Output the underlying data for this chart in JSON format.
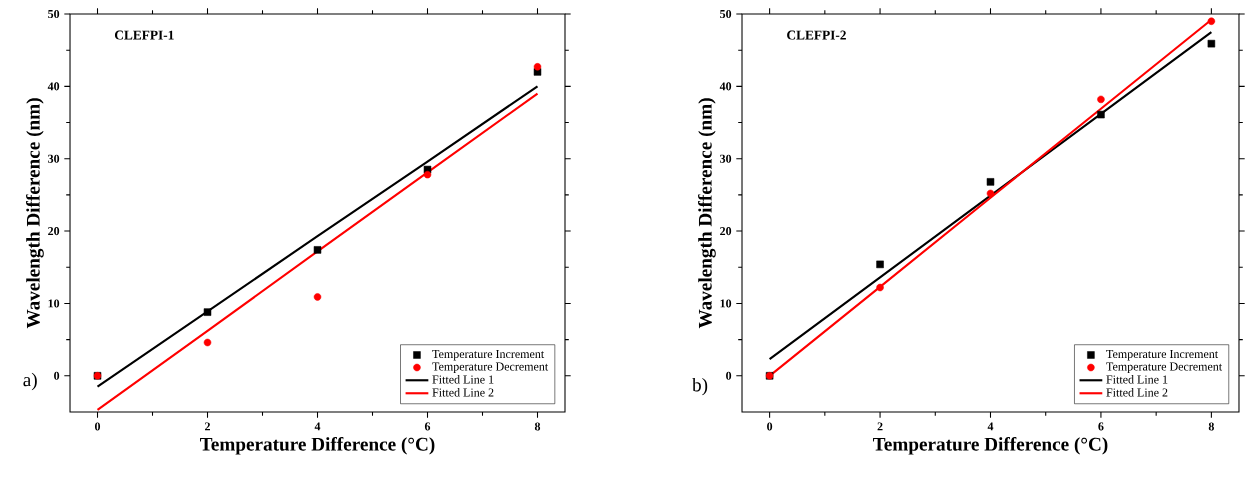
{
  "chart_data": [
    {
      "type": "scatter",
      "title": "CLEFPI-1",
      "xlabel": "Temperature Difference (°C)",
      "ylabel": "Wavelength Difference (nm)",
      "annotations": [
        "a)"
      ],
      "x": [
        0,
        2,
        4,
        6,
        8
      ],
      "xlim": [
        -0.5,
        8.5
      ],
      "ylim": [
        -5,
        50
      ],
      "xticks": [
        0,
        2,
        4,
        6,
        8
      ],
      "yticks": [
        0,
        10,
        20,
        30,
        40,
        50
      ],
      "grid": false,
      "legend": "bottom right",
      "series": [
        {
          "name": "Temperature Increment",
          "type": "scatter",
          "marker": "square",
          "color": "#000000",
          "values": [
            0,
            8.8,
            17.4,
            28.5,
            42
          ]
        },
        {
          "name": "Temperature Decrement",
          "type": "scatter",
          "marker": "circle",
          "color": "#ff0000",
          "values": [
            0,
            4.6,
            10.9,
            27.8,
            42.7
          ]
        },
        {
          "name": "Fitted Line 1",
          "type": "line",
          "marker": "none",
          "color": "#000000",
          "values": [
            -1.5,
            8.9,
            19.3,
            29.6,
            40
          ]
        },
        {
          "name": "Fitted Line 2",
          "type": "line",
          "marker": "none",
          "color": "#ff0000",
          "values": [
            -4.7,
            6.2,
            17.2,
            28.1,
            39
          ]
        }
      ]
    },
    {
      "type": "scatter",
      "title": "CLEFPI-2",
      "xlabel": "Temperature Difference (°C)",
      "ylabel": "Wavelength Difference (nm)",
      "annotations": [
        "b)"
      ],
      "x": [
        0,
        2,
        4,
        6,
        8
      ],
      "xlim": [
        -0.5,
        8.5
      ],
      "ylim": [
        -5,
        50
      ],
      "xticks": [
        0,
        2,
        4,
        6,
        8
      ],
      "yticks": [
        0,
        10,
        20,
        30,
        40,
        50
      ],
      "grid": false,
      "legend": "bottom right",
      "series": [
        {
          "name": "Temperature Increment",
          "type": "scatter",
          "marker": "square",
          "color": "#000000",
          "values": [
            0,
            15.4,
            26.8,
            36.1,
            45.9
          ]
        },
        {
          "name": "Temperature Decrement",
          "type": "scatter",
          "marker": "circle",
          "color": "#ff0000",
          "values": [
            0,
            12.2,
            25.2,
            38.2,
            49.0
          ]
        },
        {
          "name": "Fitted Line 1",
          "type": "line",
          "marker": "none",
          "color": "#000000",
          "values": [
            2.3,
            13.6,
            24.9,
            36.2,
            47.5
          ]
        },
        {
          "name": "Fitted Line 2",
          "type": "line",
          "marker": "none",
          "color": "#ff0000",
          "values": [
            0,
            12.3,
            24.6,
            36.9,
            49.2
          ]
        }
      ]
    }
  ]
}
